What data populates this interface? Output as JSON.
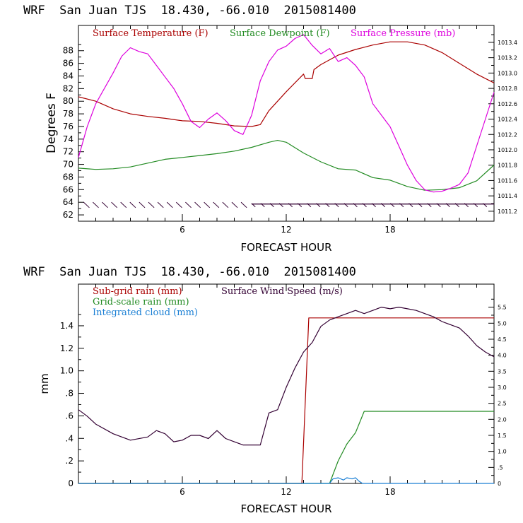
{
  "chart_data": [
    {
      "type": "line",
      "title": "WRF  San Juan TJS  18.430, -66.010  2015081400",
      "xlabel": "FORECAST HOUR",
      "ylabel": "Degrees F",
      "xlim": [
        0,
        24
      ],
      "ylim": [
        61,
        92
      ],
      "y2lim": [
        1011.07,
        1013.62
      ],
      "x_ticks": [
        6,
        12,
        18
      ],
      "x_tick_labels": [
        "6",
        "12",
        "18"
      ],
      "y_ticks": [
        62,
        64,
        66,
        68,
        70,
        72,
        74,
        76,
        78,
        80,
        82,
        84,
        86,
        88
      ],
      "y_tick_labels": [
        "62",
        "64",
        "66",
        "68",
        "70",
        "72",
        "74",
        "76",
        "78",
        "80",
        "82",
        "84",
        "86",
        "88"
      ],
      "y2_ticks": [
        1011.2,
        1011.4,
        1011.6,
        1011.8,
        1012.0,
        1012.2,
        1012.4,
        1012.6,
        1012.8,
        1013.0,
        1013.2,
        1013.4
      ],
      "y2_tick_labels": [
        "1011.2",
        "1011.4",
        "1011.6",
        "1011.8",
        "1012.0",
        "1012.2",
        "1012.4",
        "1012.6",
        "1012.8",
        "1013.0",
        "1013.2",
        "1013.4"
      ],
      "legend": [
        "Surface Temperature (F)",
        "Surface Dewpoint (F)",
        "Surface Pressure (mb)"
      ],
      "series": [
        {
          "name": "Surface Temperature (F)",
          "axis": "left",
          "color": "#aa0000",
          "x": [
            0,
            1,
            2,
            3,
            4,
            5,
            6,
            7,
            8,
            9,
            10,
            10.5,
            11,
            12,
            13,
            13.1,
            13.5,
            13.6,
            14,
            15,
            16,
            17,
            18,
            19,
            20,
            21,
            22,
            23,
            24
          ],
          "y": [
            80.7,
            80,
            78.8,
            78,
            77.6,
            77.3,
            76.9,
            76.8,
            76.5,
            76.1,
            76.0,
            76.3,
            78.5,
            81.5,
            84.3,
            83.6,
            83.6,
            85,
            85.8,
            87.3,
            88.2,
            88.9,
            89.4,
            89.4,
            88.9,
            87.7,
            86.0,
            84.3,
            82.9
          ]
        },
        {
          "name": "Surface Dewpoint (F)",
          "axis": "left",
          "color": "#228b22",
          "x": [
            0,
            1,
            2,
            3,
            4,
            5,
            6,
            7,
            8,
            9,
            10,
            11,
            11.5,
            12,
            13,
            14,
            15,
            16,
            17,
            18,
            19,
            20,
            21,
            22,
            23,
            24
          ],
          "y": [
            69.4,
            69.2,
            69.3,
            69.6,
            70.2,
            70.8,
            71.1,
            71.4,
            71.7,
            72.1,
            72.7,
            73.5,
            73.8,
            73.5,
            71.8,
            70.4,
            69.3,
            69.1,
            67.9,
            67.5,
            66.5,
            65.9,
            66.0,
            66.3,
            67.4,
            69.9
          ]
        },
        {
          "name": "Surface Pressure (mb)",
          "axis": "right",
          "color": "#dd00dd",
          "x": [
            0,
            0.5,
            1,
            2,
            2.5,
            3,
            3.5,
            4,
            4.5,
            5,
            5.5,
            6,
            6.5,
            7,
            7.5,
            8,
            8.5,
            9,
            9.5,
            10,
            10.5,
            11,
            11.5,
            12,
            12.5,
            13,
            13.5,
            14,
            14.5,
            15,
            15.5,
            16,
            16.5,
            17,
            17.5,
            18,
            18.5,
            19,
            19.5,
            20,
            20.5,
            21,
            21.5,
            22,
            22.5,
            23,
            23.5,
            24
          ],
          "y": [
            1011.9,
            1012.3,
            1012.6,
            1013.0,
            1013.22,
            1013.33,
            1013.28,
            1013.25,
            1013.1,
            1012.95,
            1012.8,
            1012.6,
            1012.37,
            1012.29,
            1012.4,
            1012.48,
            1012.38,
            1012.25,
            1012.2,
            1012.45,
            1012.9,
            1013.15,
            1013.3,
            1013.35,
            1013.45,
            1013.5,
            1013.36,
            1013.25,
            1013.32,
            1013.15,
            1013.2,
            1013.1,
            1012.95,
            1012.6,
            1012.45,
            1012.3,
            1012.05,
            1011.8,
            1011.6,
            1011.48,
            1011.45,
            1011.46,
            1011.5,
            1011.55,
            1011.7,
            1012.05,
            1012.4,
            1012.75
          ]
        }
      ],
      "wind_barbs": {
        "color": "#330033",
        "y": 63.5,
        "x_start": 0.5,
        "x_end": 23.5,
        "count": 44
      }
    },
    {
      "type": "line",
      "title": "WRF  San Juan TJS  18.430, -66.010  2015081400",
      "xlabel": "FORECAST HOUR",
      "ylabel": "mm",
      "xlim": [
        0,
        24
      ],
      "ylim": [
        0,
        1.77
      ],
      "y2lim": [
        0,
        6.22
      ],
      "x_ticks": [
        6,
        12,
        18
      ],
      "x_tick_labels": [
        "6",
        "12",
        "18"
      ],
      "y_ticks": [
        0,
        0.2,
        0.4,
        0.6,
        0.8,
        1.0,
        1.2,
        1.4
      ],
      "y_tick_labels": [
        "0",
        ".2",
        ".4",
        ".6",
        ".8",
        "1.0",
        "1.2",
        "1.4"
      ],
      "y2_ticks": [
        0,
        0.5,
        1.0,
        1.5,
        2.0,
        2.5,
        3.0,
        3.5,
        4.0,
        4.5,
        5.0,
        5.5
      ],
      "y2_tick_labels": [
        "0",
        ".5",
        "1.0",
        "1.5",
        "2.0",
        "2.5",
        "3.0",
        "3.5",
        "4.0",
        "4.5",
        "5.0",
        "5.5"
      ],
      "legend": [
        "Sub-grid rain (mm)",
        "Surface Wind Speed (m/s)",
        "Grid-scale rain (mm)",
        "Integrated cloud (mm)"
      ],
      "series": [
        {
          "name": "Sub-grid rain (mm)",
          "axis": "left",
          "color": "#aa0000",
          "x": [
            0,
            12.9,
            13.3,
            24
          ],
          "y": [
            0,
            0,
            1.47,
            1.47
          ]
        },
        {
          "name": "Surface Wind Speed (m/s)",
          "axis": "right",
          "color": "#330033",
          "x": [
            0,
            0.5,
            1,
            2,
            3,
            4,
            4.5,
            5,
            5.5,
            6,
            6.5,
            7,
            7.5,
            8,
            8.5,
            9,
            9.5,
            10,
            10.5,
            11,
            11.5,
            12,
            12.5,
            13,
            13.5,
            14,
            14.5,
            15,
            15.5,
            16,
            16.5,
            17,
            17.5,
            18,
            18.5,
            19,
            19.5,
            20,
            20.5,
            21,
            21.5,
            22,
            22.5,
            23,
            23.5,
            24
          ],
          "y": [
            2.3,
            2.1,
            1.85,
            1.55,
            1.35,
            1.45,
            1.65,
            1.55,
            1.3,
            1.35,
            1.5,
            1.5,
            1.4,
            1.65,
            1.4,
            1.3,
            1.2,
            1.2,
            1.2,
            2.2,
            2.3,
            3.0,
            3.6,
            4.1,
            4.4,
            4.9,
            5.1,
            5.2,
            5.3,
            5.4,
            5.3,
            5.4,
            5.5,
            5.45,
            5.5,
            5.45,
            5.4,
            5.3,
            5.2,
            5.05,
            4.95,
            4.85,
            4.6,
            4.3,
            4.1,
            3.95
          ]
        },
        {
          "name": "Grid-scale rain (mm)",
          "axis": "left",
          "color": "#228b22",
          "x": [
            0,
            14.5,
            15,
            15.5,
            16,
            16.5,
            24
          ],
          "y": [
            0,
            0,
            0.2,
            0.35,
            0.45,
            0.64,
            0.64
          ]
        },
        {
          "name": "Integrated cloud (mm)",
          "axis": "left",
          "color": "#1a7fd4",
          "x": [
            0,
            14.5,
            14.7,
            15,
            15.3,
            15.5,
            15.8,
            16,
            16.2,
            16.4,
            24
          ],
          "y": [
            0,
            0,
            0.04,
            0.05,
            0.03,
            0.05,
            0.04,
            0.05,
            0.02,
            0,
            0
          ]
        }
      ]
    }
  ]
}
